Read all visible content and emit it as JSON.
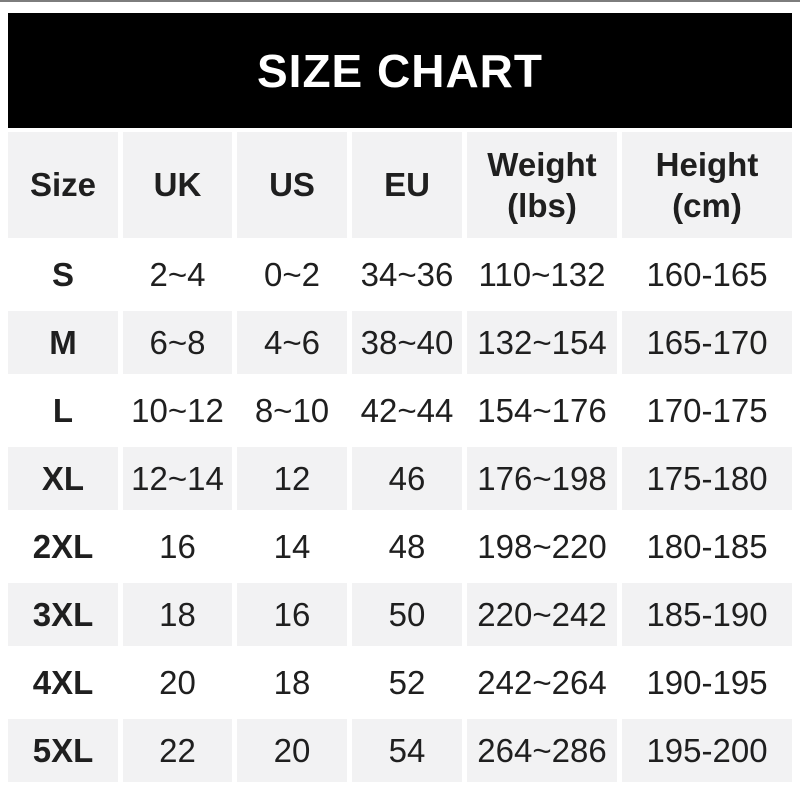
{
  "chart_data": {
    "type": "table",
    "title": "SIZE CHART",
    "columns": [
      "Size",
      "UK",
      "US",
      "EU",
      "Weight\n(lbs)",
      "Height\n(cm)"
    ],
    "rows": [
      {
        "size": "S",
        "uk": "2~4",
        "us": "0~2",
        "eu": "34~36",
        "weight": "110~132",
        "height": "160-165"
      },
      {
        "size": "M",
        "uk": "6~8",
        "us": "4~6",
        "eu": "38~40",
        "weight": "132~154",
        "height": "165-170"
      },
      {
        "size": "L",
        "uk": "10~12",
        "us": "8~10",
        "eu": "42~44",
        "weight": "154~176",
        "height": "170-175"
      },
      {
        "size": "XL",
        "uk": "12~14",
        "us": "12",
        "eu": "46",
        "weight": "176~198",
        "height": "175-180"
      },
      {
        "size": "2XL",
        "uk": "16",
        "us": "14",
        "eu": "48",
        "weight": "198~220",
        "height": "180-185"
      },
      {
        "size": "3XL",
        "uk": "18",
        "us": "16",
        "eu": "50",
        "weight": "220~242",
        "height": "185-190"
      },
      {
        "size": "4XL",
        "uk": "20",
        "us": "18",
        "eu": "52",
        "weight": "242~264",
        "height": "190-195"
      },
      {
        "size": "5XL",
        "uk": "22",
        "us": "20",
        "eu": "54",
        "weight": "264~286",
        "height": "195-200"
      }
    ],
    "layout": {
      "grid": "off",
      "shaded_rows": [
        "header",
        "M",
        "XL",
        "3XL",
        "5XL"
      ]
    }
  },
  "colors": {
    "title_bar_bg": "#000000",
    "title_text": "#ffffff",
    "shaded_cell_bg": "#f2f2f3",
    "plain_cell_bg": "#ffffff",
    "cell_text": "#1f1f1f",
    "top_edge_line": "#7d7d7d"
  }
}
